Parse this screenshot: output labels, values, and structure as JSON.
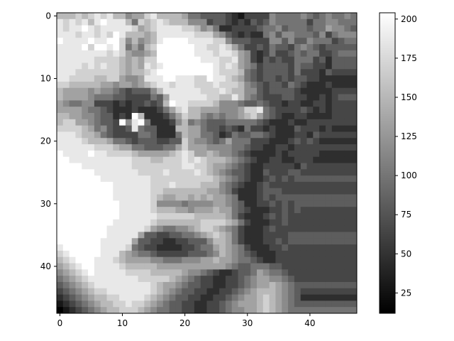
{
  "chart_data": {
    "type": "heatmap",
    "colormap": "gray",
    "shape": [
      48,
      48
    ],
    "x_ticks": [
      0,
      10,
      20,
      30,
      40
    ],
    "y_ticks": [
      0,
      10,
      20,
      30,
      40
    ],
    "colorbar": {
      "vmin": 12,
      "vmax": 204,
      "ticks": [
        25,
        50,
        75,
        100,
        125,
        150,
        175,
        200
      ]
    },
    "description_grid": [
      "888989A9A886779A88887554444321333365555654565565",
      "A9A9A8ABAAA85989A98886663443232434655555355665556",
      "A9AABA9AAAAA9789AAAA9986752233334556455545576654",
      "AAA9AA9A9BA88878AAAAAA9997643232256466555463566",
      "BAAAABAABB968678ABBBBAAAA9964443336646446555345",
      "AAAAB9BBAB957589BBBBBBAA99A9753343544356543444",
      "AAAAAAAA9A976678BBBBBBAAA9AA9763235334545533455",
      "AAAAAA9999878799BBBBBBBAAA99A76324343355534244",
      "AAAA9A9A998787A9ABBBBBBBBA9A97653444435443324",
      "AAA999999987889ABBBBBBBBBA9998543444435333243",
      "AA999988997667AAABBAAA99BAA98754344343443322",
      "9988888776776789AA9AAA999A9998654344354322232",
      "87777676654344468AAAAAA999A9886643444432222233",
      "877776555443333547AAAAAA9988A86543334433223234",
      "765566333232334348BAA999986665445433233223323",
      "77776554322232223579A88777666799A5433334323233",
      "887766544232B82223579886565667897543223322223",
      "8997765443B6AB52223685654445555543222322333",
      "999987564334A54422288775443432533232224333232",
      "AAA98875433335542225877554235445543222332433",
      "AAAA988875543444334497665457555333222343432",
      "AAAAAA9998775544455797776666554332233233333",
      "BAAAABAA999987777789A9778766543222232333332",
      "BBAAAAAAAAAA99988999A9A9888765432233223332",
      "BBBBAAAAAAAA99999999AA9987765432233333243",
      "BBBBBBAAAAAAA9999A9999A98765443224333443",
      "BBBBBBBAAAAAAAA999999999987654322343434",
      "BBBBBBBBBAAAAAA999A99998886543223433333",
      "BBBBBBBBBAAAAAA99888888877653222344433",
      "BBBBBBBBBAAAAAA9877887878776522234344",
      "BBBBBBBBBBAAAAA966665666677654223343434",
      "BBBBBBBBBBAAAAA9888776777877543222334343",
      "BBBBBBBBBBAAAAAA9999998888875322234343",
      "BBBBBBBBBAAAAAA988888889999875322233433",
      "BBBBBBBBAAAAAA97655667899876532223433",
      "BBBBBBBBAAAAA7443344556789875322233334",
      "BBBBBBBAAAAA74433223344468875322233434",
      "ABBBBBBAAAA954332222334557876532223343",
      "9ABBBBBAAA8765543333344456876543222333",
      "89ABBBAAA98777766555666778776554322333",
      "789ABBAAAA98888877777777777654455544333",
      "6789ABAAAAA99998888876654322344576554333",
      "56789AAAAAAAA999998765433223345677665433",
      "456789AAAAAAAAA987765443322334567787654",
      "34567899AAAAAAA9876544332233456788876543",
      "2345678899AAAA98765443322334567789876542",
      "12345678899A998765443322334567778987654",
      "01234567889998765544332233456677898765"
    ]
  }
}
